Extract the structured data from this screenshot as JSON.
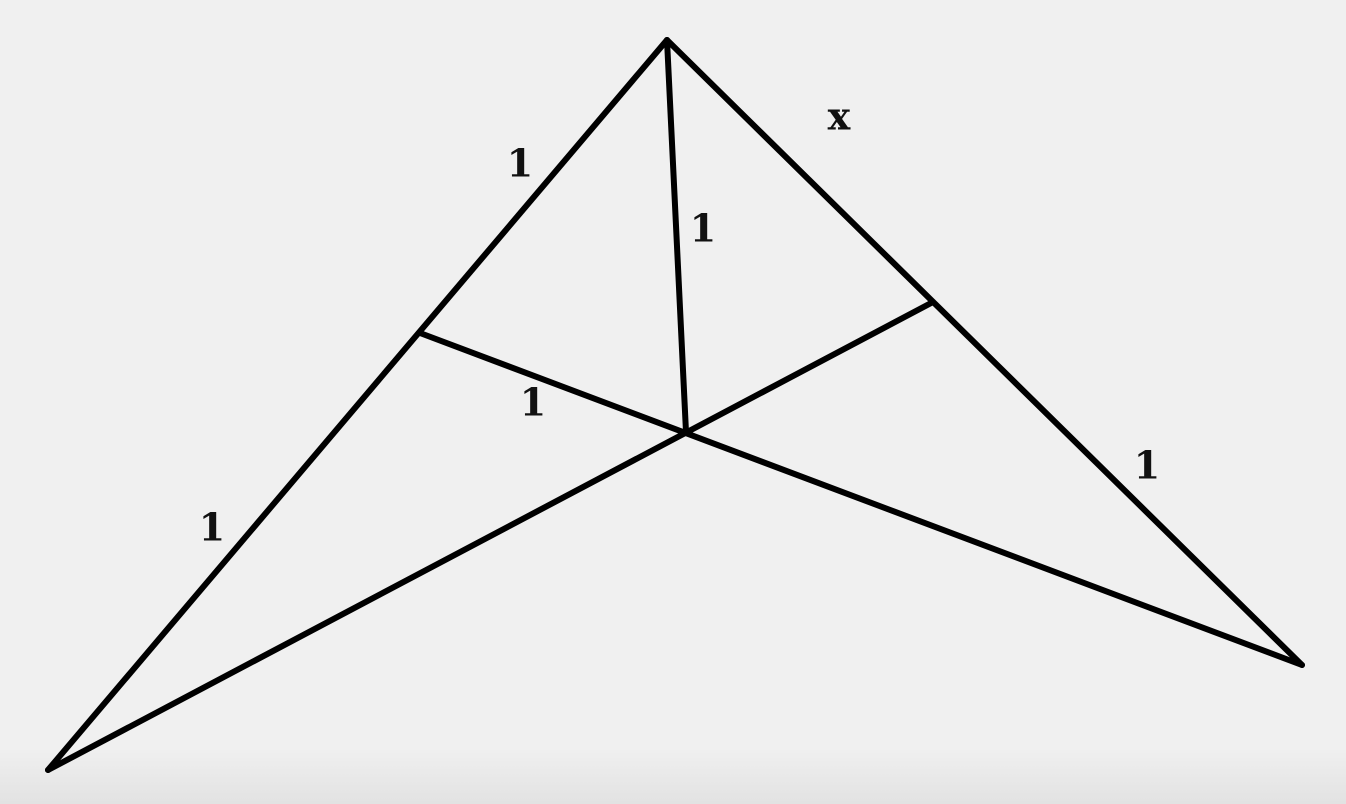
{
  "diagram": {
    "labels": {
      "left_upper": "1",
      "left_lower": "1",
      "center_vertical": "1",
      "inner_segment": "1",
      "right_upper": "x",
      "right_lower": "1"
    }
  }
}
